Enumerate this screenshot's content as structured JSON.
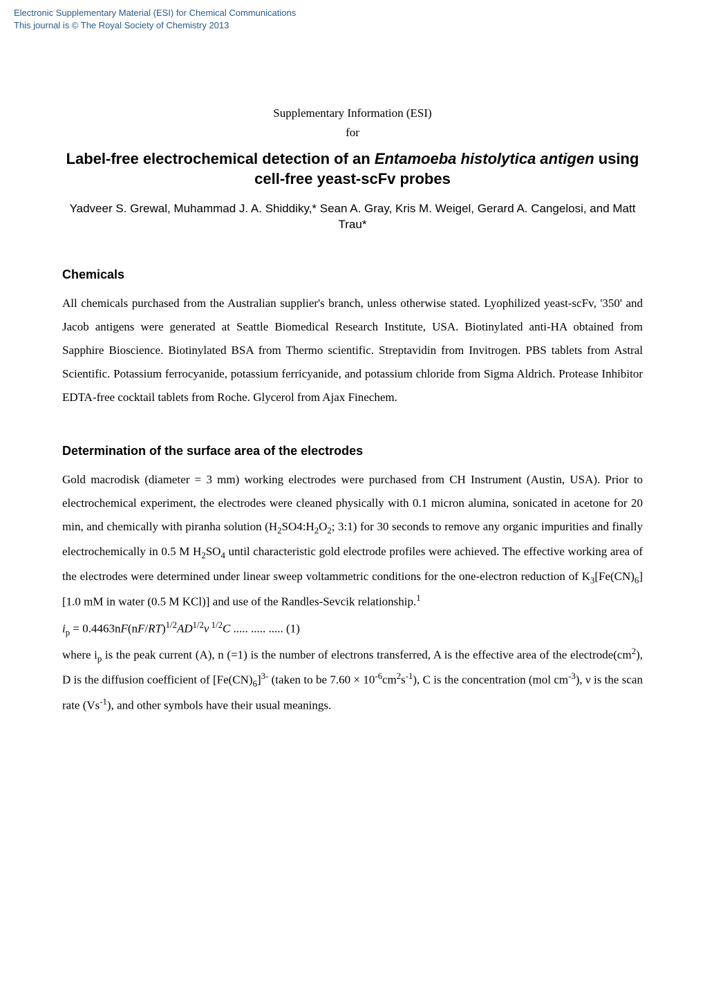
{
  "header": {
    "line1": "Electronic Supplementary Material (ESI) for Chemical Communications",
    "line2": "This journal is © The Royal Society of Chemistry 2013"
  },
  "supp_title": "Supplementary Information (ESI)",
  "supp_for": "for",
  "title": {
    "part1": "Label-free electrochemical detection of an ",
    "italic1": "Entamoeba histolytica antigen",
    "part2": " using cell-free yeast-scFv probes"
  },
  "authors": "Yadveer S. Grewal, Muhammad J. A. Shiddiky,* Sean A. Gray, Kris M. Weigel,  Gerard A. Cangelosi,  and Matt Trau*",
  "section1": {
    "heading": "Chemicals",
    "body": "All chemicals purchased from the Australian supplier's branch, unless otherwise stated. Lyophilized yeast-scFv, '350' and Jacob antigens were generated at Seattle Biomedical Research Institute, USA. Biotinylated anti-HA obtained from Sapphire Bioscience. Biotinylated BSA from Thermo scientific. Streptavidin from Invitrogen. PBS tablets from Astral Scientific. Potassium ferrocyanide, potassium  ferricyanide, and potassium chloride from Sigma Aldrich. Protease Inhibitor EDTA-free cocktail tablets from Roche. Glycerol from Ajax Finechem."
  },
  "section2": {
    "heading": "Determination of the surface area of the electrodes",
    "body_part1": "Gold macrodisk (diameter = 3 mm) working electrodes were purchased from CH Instrument (Austin, USA). Prior to electrochemical experiment, the electrodes were cleaned physically with 0.1 micron alumina, sonicated in acetone for 20 min, and chemically with piranha solution (H",
    "body_part2": "SO4:H",
    "body_part3": "O",
    "body_part4": "; 3:1) for 30 seconds to remove any organic impurities and finally electrochemically in 0.5 M H",
    "body_part5": "SO",
    "body_part6": " until characteristic gold electrode profiles were achieved. The effective working area of the electrodes were determined under linear sweep voltammetric conditions for the one-electron reduction of K",
    "body_part7": "[Fe(CN)",
    "body_part8": "] [1.0 mM in water (0.5 M KCl)] and use of the Randles-Sevcik relationship.",
    "equation_ip": "i",
    "equation_p": "p",
    "equation_eq": " = 0.4463n",
    "equation_F1": "F",
    "equation_paren": "(n",
    "equation_F2": "F",
    "equation_slash": "/",
    "equation_RT": "RT",
    "equation_close": ")",
    "equation_half1": "1/2",
    "equation_AD": "AD",
    "equation_half2": "1/2",
    "equation_nu": "ν",
    "equation_half3": " 1/2",
    "equation_C": "C",
    "equation_dots": " ..... ..... ..... (1)",
    "where_part1": "where ",
    "where_ip": "i",
    "where_p": "p",
    "where_part2": " is the peak current ",
    "where_A1": "(",
    "where_A1b": "A), ",
    "where_n": "n",
    "where_part3": " (=1) is the number of electrons transferred, ",
    "where_A2": "A",
    "where_part4": " is the effective area of the electrode(cm",
    "where_part5": "), ",
    "where_D": "D",
    "where_part6": " is the diffusion coefficient of [Fe(CN)",
    "where_part7": "]",
    "where_part8": " (taken to be 7.60 × 10",
    "where_part9": "cm",
    "where_part10": "s",
    "where_part11": "), ",
    "where_C": "C",
    "where_part12": " is the concentration (mol cm",
    "where_part13": "), ",
    "where_nu": "ν",
    "where_part14": " is the scan rate (Vs",
    "where_part15": "), and other symbols have their usual meanings."
  },
  "colors": {
    "header_text": "#2a5a8a",
    "body_text": "#000000",
    "background": "#ffffff"
  },
  "fonts": {
    "header_size": 13,
    "title_size": 22,
    "heading_size": 18,
    "body_size": 17,
    "body_family": "Times New Roman",
    "title_family": "Arial"
  }
}
